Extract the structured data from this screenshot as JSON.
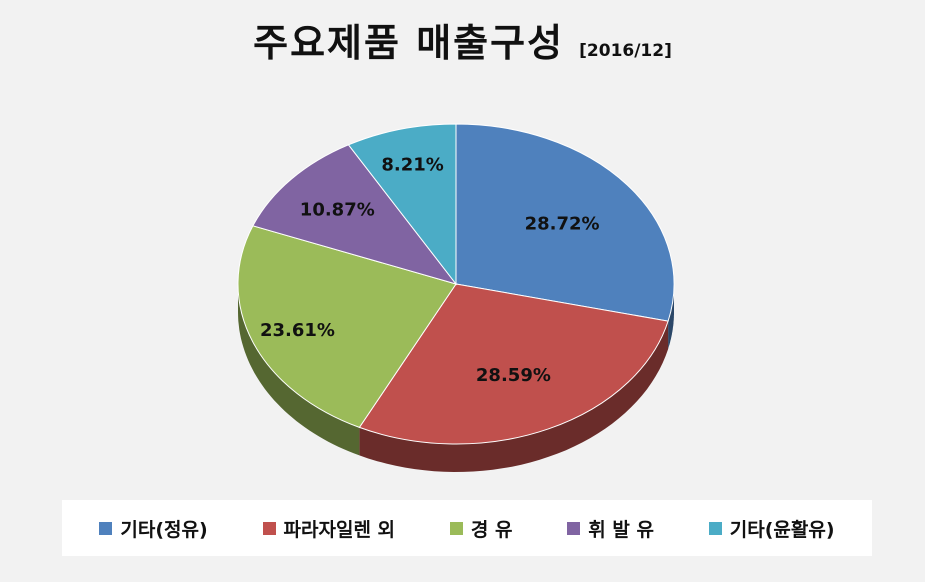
{
  "chart_data": {
    "type": "pie",
    "title": "주요제품 매출구성",
    "subtitle": "[2016/12]",
    "slices": [
      {
        "label": "기타(정유)",
        "value": 28.72,
        "display": "28.72%",
        "color": "#4f81bd"
      },
      {
        "label": "파라자일렌 외",
        "value": 28.59,
        "display": "28.59%",
        "color": "#c0504d"
      },
      {
        "label": "경 유",
        "value": 23.61,
        "display": "23.61%",
        "color": "#9bbb59"
      },
      {
        "label": "휘 발 유",
        "value": 10.87,
        "display": "10.87%",
        "color": "#8064a2"
      },
      {
        "label": "기타(윤활유)",
        "value": 8.21,
        "display": "8.21%",
        "color": "#4bacc6"
      }
    ],
    "legend": {
      "position": "bottom"
    }
  }
}
